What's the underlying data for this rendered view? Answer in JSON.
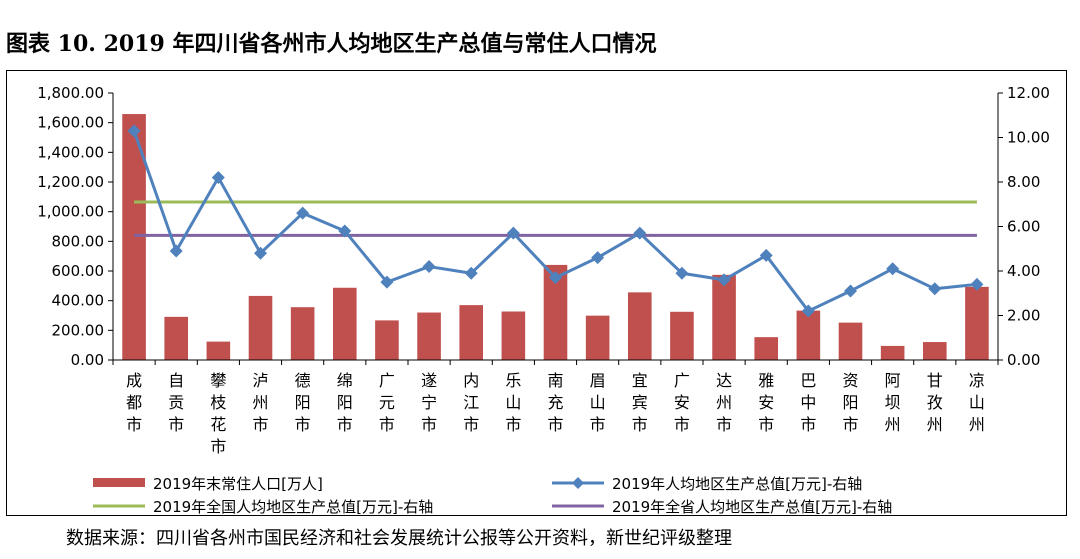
{
  "title": "图表 10. 2019 年四川省各州市人均地区生产总值与常住人口情况",
  "source": "数据来源：四川省各州市国民经济和社会发展统计公报等公开资料，新世纪评级整理",
  "colors": {
    "bar": "#c0504d",
    "per_capita": "#4f81bd",
    "national": "#9bbb59",
    "provincial": "#8064a2"
  },
  "chart_data": {
    "type": "bar",
    "categories": [
      "成都市",
      "自贡市",
      "攀枝花市",
      "泸州市",
      "德阳市",
      "绵阳市",
      "广元市",
      "遂宁市",
      "内江市",
      "乐山市",
      "南充市",
      "眉山市",
      "宜宾市",
      "广安市",
      "达州市",
      "雅安市",
      "巴中市",
      "资阳市",
      "阿坝州",
      "甘孜州",
      "凉山州"
    ],
    "left_axis": {
      "min": 0,
      "max": 1800,
      "step": 200,
      "tick_labels": [
        "0.00",
        "200.00",
        "400.00",
        "600.00",
        "800.00",
        "1,000.00",
        "1,200.00",
        "1,400.00",
        "1,600.00",
        "1,800.00"
      ]
    },
    "right_axis": {
      "min": 0,
      "max": 12,
      "step": 2,
      "tick_labels": [
        "0.00",
        "2.00",
        "4.00",
        "6.00",
        "8.00",
        "10.00",
        "12.00"
      ]
    },
    "series": [
      {
        "name": "2019年末常住人口[万人]",
        "type": "bar",
        "axis": "left",
        "values": [
          1658,
          291,
          124,
          432,
          356,
          487,
          267,
          320,
          370,
          327,
          641,
          299,
          456,
          325,
          574,
          154,
          333,
          252,
          95,
          121,
          493
        ]
      },
      {
        "name": "2019年人均地区生产总值[万元]-右轴",
        "type": "line",
        "axis": "right",
        "marker": "diamond",
        "values": [
          10.3,
          4.9,
          8.2,
          4.8,
          6.6,
          5.8,
          3.5,
          4.2,
          3.9,
          5.7,
          3.7,
          4.6,
          5.7,
          3.9,
          3.6,
          4.7,
          2.2,
          3.1,
          4.1,
          3.2,
          3.4
        ]
      },
      {
        "name": "2019年全国人均地区生产总值[万元]-右轴",
        "type": "line",
        "axis": "right",
        "values": [
          7.1,
          7.1,
          7.1,
          7.1,
          7.1,
          7.1,
          7.1,
          7.1,
          7.1,
          7.1,
          7.1,
          7.1,
          7.1,
          7.1,
          7.1,
          7.1,
          7.1,
          7.1,
          7.1,
          7.1,
          7.1
        ]
      },
      {
        "name": "2019年全省人均地区生产总值[万元]-右轴",
        "type": "line",
        "axis": "right",
        "values": [
          5.6,
          5.6,
          5.6,
          5.6,
          5.6,
          5.6,
          5.6,
          5.6,
          5.6,
          5.6,
          5.6,
          5.6,
          5.6,
          5.6,
          5.6,
          5.6,
          5.6,
          5.6,
          5.6,
          5.6,
          5.6
        ]
      }
    ],
    "legend_position": "bottom",
    "grid": false
  }
}
